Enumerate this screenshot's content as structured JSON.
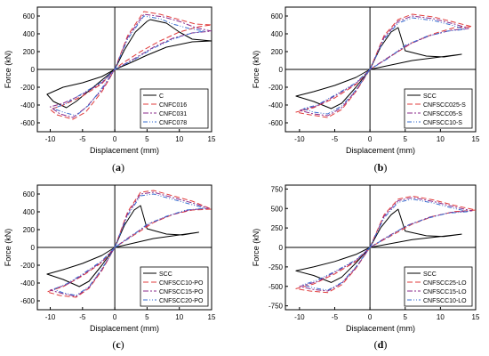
{
  "chart_data": [
    {
      "panel": "a",
      "type": "line",
      "xlabel": "Displacement (mm)",
      "ylabel": "Force (kN)",
      "xlim": [
        -12,
        15
      ],
      "ylim": [
        -700,
        700
      ],
      "xticks": [
        -10,
        -5,
        0,
        5,
        10,
        15
      ],
      "yticks": [
        -600,
        -400,
        -200,
        0,
        200,
        400,
        600
      ],
      "legend": "bottom-right",
      "series": [
        {
          "name": "C",
          "color": "#000000",
          "dash": "",
          "x": [
            0,
            1.5,
            3.2,
            5.0,
            5.5,
            8.0,
            10.0,
            12.0,
            15.0,
            12.0,
            8.0,
            5.0,
            2.0,
            0,
            -3.0,
            -6.0,
            -7.5,
            -9.5,
            -10.5,
            -8.0,
            -5.0,
            -2.0,
            0
          ],
          "y": [
            0,
            220,
            420,
            540,
            560,
            520,
            420,
            340,
            320,
            310,
            250,
            160,
            60,
            0,
            -180,
            -360,
            -430,
            -360,
            -280,
            -200,
            -150,
            -80,
            0
          ]
        },
        {
          "name": "CNFC016",
          "color": "#e03c3c",
          "dash": "6,3",
          "x": [
            0,
            2.0,
            4.5,
            7.0,
            10.0,
            12.5,
            15.0,
            13.0,
            10.0,
            7.0,
            4.0,
            1.0,
            0,
            -2.0,
            -4.5,
            -6.5,
            -9.0,
            -10.0,
            -8.0,
            -5.0,
            -2.0,
            0
          ],
          "y": [
            0,
            380,
            650,
            620,
            560,
            510,
            500,
            480,
            420,
            320,
            200,
            60,
            0,
            -250,
            -480,
            -560,
            -510,
            -450,
            -400,
            -300,
            -160,
            0
          ]
        },
        {
          "name": "CNFC031",
          "color": "#8a2a8a",
          "dash": "6,2,2,2",
          "x": [
            0,
            2.0,
            4.5,
            7.5,
            10.0,
            12.5,
            15.0,
            12.0,
            9.0,
            6.0,
            3.0,
            0,
            -2.0,
            -4.5,
            -6.5,
            -8.5,
            -10.0,
            -8.0,
            -5.0,
            -2.0,
            0
          ],
          "y": [
            0,
            360,
            620,
            590,
            540,
            470,
            430,
            410,
            350,
            250,
            120,
            0,
            -230,
            -430,
            -540,
            -500,
            -420,
            -380,
            -280,
            -150,
            0
          ]
        },
        {
          "name": "CNFC078",
          "color": "#3a6fd0",
          "dash": "5,2,1,2,1,2",
          "x": [
            0,
            2.0,
            4.5,
            7.0,
            9.0,
            11.5,
            14.0,
            12.0,
            9.0,
            6.0,
            3.0,
            0,
            -2.0,
            -4.0,
            -6.0,
            -8.0,
            -9.5,
            -7.5,
            -5.0,
            -2.0,
            0
          ],
          "y": [
            0,
            340,
            600,
            570,
            510,
            460,
            430,
            410,
            340,
            240,
            110,
            0,
            -210,
            -400,
            -520,
            -480,
            -440,
            -380,
            -270,
            -140,
            0
          ]
        }
      ]
    },
    {
      "panel": "b",
      "type": "line",
      "xlabel": "Displacement (mm)",
      "ylabel": "Force (kN)",
      "xlim": [
        -12,
        15
      ],
      "ylim": [
        -700,
        700
      ],
      "xticks": [
        -10,
        -5,
        0,
        5,
        10,
        15
      ],
      "yticks": [
        -600,
        -400,
        -200,
        0,
        200,
        400,
        600
      ],
      "legend": "bottom-right",
      "series": [
        {
          "name": "SCC",
          "color": "#000000",
          "dash": "",
          "x": [
            0,
            1.5,
            3.0,
            4.0,
            5.0,
            8.0,
            10.5,
            13.0,
            10.0,
            6.0,
            3.0,
            0,
            -2.0,
            -4.0,
            -5.5,
            -8.0,
            -10.5,
            -8.0,
            -5.0,
            -2.0,
            0
          ],
          "y": [
            0,
            250,
            420,
            470,
            210,
            150,
            140,
            170,
            140,
            100,
            50,
            0,
            -200,
            -380,
            -440,
            -360,
            -300,
            -250,
            -180,
            -90,
            0
          ]
        },
        {
          "name": "CNFSCC025-S",
          "color": "#e03c3c",
          "dash": "6,3",
          "x": [
            0,
            2.0,
            4.0,
            6.0,
            9.0,
            12.0,
            14.5,
            12.0,
            9.0,
            6.0,
            3.0,
            0,
            -2.0,
            -4.0,
            -6.0,
            -8.5,
            -10.5,
            -8.0,
            -5.0,
            -2.0,
            0
          ],
          "y": [
            0,
            380,
            560,
            620,
            590,
            530,
            480,
            470,
            400,
            300,
            150,
            0,
            -250,
            -450,
            -540,
            -510,
            -480,
            -430,
            -320,
            -170,
            0
          ]
        },
        {
          "name": "CNFSCC05-S",
          "color": "#8a2a8a",
          "dash": "6,2,2,2",
          "x": [
            0,
            2.0,
            4.0,
            6.0,
            9.0,
            12.0,
            14.0,
            11.5,
            8.5,
            5.5,
            2.5,
            0,
            -2.0,
            -4.0,
            -6.0,
            -8.0,
            -10.0,
            -7.5,
            -5.0,
            -2.0,
            0
          ],
          "y": [
            0,
            360,
            540,
            600,
            570,
            510,
            460,
            440,
            380,
            280,
            130,
            0,
            -240,
            -430,
            -520,
            -500,
            -460,
            -410,
            -300,
            -160,
            0
          ]
        },
        {
          "name": "CNFSCC10-S",
          "color": "#3a6fd0",
          "dash": "5,2,1,2,1,2",
          "x": [
            0,
            2.0,
            4.0,
            6.0,
            9.0,
            11.5,
            13.5,
            11.0,
            8.0,
            5.0,
            2.5,
            0,
            -2.0,
            -4.0,
            -6.0,
            -8.0,
            -9.5,
            -7.5,
            -5.0,
            -2.0,
            0
          ],
          "y": [
            0,
            340,
            520,
            580,
            550,
            500,
            450,
            430,
            370,
            270,
            120,
            0,
            -230,
            -410,
            -500,
            -480,
            -440,
            -400,
            -290,
            -150,
            0
          ]
        }
      ]
    },
    {
      "panel": "c",
      "type": "line",
      "xlabel": "Displacement (mm)",
      "ylabel": "Force (kN)",
      "xlim": [
        -12,
        15
      ],
      "ylim": [
        -700,
        700
      ],
      "xticks": [
        -10,
        -5,
        0,
        5,
        10,
        15
      ],
      "yticks": [
        -600,
        -400,
        -200,
        0,
        200,
        400,
        600
      ],
      "legend": "bottom-right",
      "series": [
        {
          "name": "SCC",
          "color": "#000000",
          "dash": "",
          "x": [
            0,
            1.5,
            3.0,
            4.0,
            5.0,
            8.0,
            10.5,
            13.0,
            10.0,
            6.0,
            3.0,
            0,
            -2.0,
            -4.0,
            -5.5,
            -8.0,
            -10.5,
            -8.0,
            -5.0,
            -2.0,
            0
          ],
          "y": [
            0,
            250,
            420,
            470,
            210,
            150,
            140,
            170,
            140,
            100,
            50,
            0,
            -200,
            -380,
            -440,
            -360,
            -300,
            -250,
            -180,
            -90,
            0
          ]
        },
        {
          "name": "CNFSCC10-PO",
          "color": "#e03c3c",
          "dash": "6,3",
          "x": [
            0,
            2.0,
            4.0,
            6.0,
            9.0,
            12.0,
            15.0,
            12.0,
            9.0,
            6.0,
            3.0,
            0,
            -2.0,
            -4.0,
            -6.0,
            -8.5,
            -10.5,
            -8.0,
            -5.0,
            -2.0,
            0
          ],
          "y": [
            0,
            400,
            620,
            640,
            580,
            520,
            430,
            420,
            370,
            280,
            140,
            0,
            -260,
            -460,
            -560,
            -540,
            -500,
            -440,
            -320,
            -170,
            0
          ]
        },
        {
          "name": "CNFSCC15-PO",
          "color": "#8a2a8a",
          "dash": "6,2,2,2",
          "x": [
            0,
            2.0,
            4.0,
            6.0,
            9.0,
            12.0,
            14.5,
            11.5,
            8.5,
            5.5,
            2.5,
            0,
            -2.0,
            -4.0,
            -6.0,
            -8.0,
            -10.0,
            -7.5,
            -5.0,
            -2.0,
            0
          ],
          "y": [
            0,
            380,
            600,
            620,
            560,
            500,
            440,
            420,
            360,
            270,
            130,
            0,
            -250,
            -450,
            -550,
            -520,
            -480,
            -420,
            -310,
            -160,
            0
          ]
        },
        {
          "name": "CNFSCC20-PO",
          "color": "#3a6fd0",
          "dash": "5,2,1,2,1,2",
          "x": [
            0,
            2.0,
            4.0,
            6.0,
            9.0,
            11.5,
            14.0,
            11.0,
            8.0,
            5.0,
            2.5,
            0,
            -2.0,
            -4.0,
            -6.0,
            -8.0,
            -9.5,
            -7.5,
            -5.0,
            -2.0,
            0
          ],
          "y": [
            0,
            360,
            580,
            600,
            540,
            490,
            440,
            420,
            350,
            260,
            120,
            0,
            -240,
            -440,
            -540,
            -510,
            -470,
            -410,
            -300,
            -150,
            0
          ]
        }
      ]
    },
    {
      "panel": "d",
      "type": "line",
      "xlabel": "Displacement (mm)",
      "ylabel": "Force (kN)",
      "xlim": [
        -12,
        15
      ],
      "ylim": [
        -800,
        800
      ],
      "xticks": [
        -10,
        -5,
        0,
        5,
        10,
        15
      ],
      "yticks": [
        -750,
        -500,
        -250,
        0,
        250,
        500,
        750
      ],
      "legend": "bottom-right",
      "series": [
        {
          "name": "SCC",
          "color": "#000000",
          "dash": "",
          "x": [
            0,
            1.5,
            3.0,
            4.0,
            5.0,
            8.0,
            10.5,
            13.0,
            10.0,
            6.0,
            3.0,
            0,
            -2.0,
            -4.0,
            -5.5,
            -8.0,
            -10.5,
            -8.0,
            -5.0,
            -2.0,
            0
          ],
          "y": [
            0,
            250,
            420,
            490,
            210,
            150,
            140,
            170,
            140,
            100,
            50,
            0,
            -200,
            -380,
            -450,
            -360,
            -300,
            -250,
            -180,
            -90,
            0
          ]
        },
        {
          "name": "CNFSCC25-LO",
          "color": "#e03c3c",
          "dash": "6,3",
          "x": [
            0,
            2.0,
            4.0,
            6.0,
            9.0,
            12.0,
            15.0,
            12.0,
            9.0,
            6.0,
            3.0,
            0,
            -2.0,
            -4.0,
            -6.0,
            -8.5,
            -10.5,
            -8.0,
            -5.0,
            -2.0,
            0
          ],
          "y": [
            0,
            420,
            620,
            660,
            610,
            540,
            480,
            460,
            400,
            300,
            150,
            0,
            -270,
            -480,
            -580,
            -560,
            -530,
            -470,
            -340,
            -180,
            0
          ]
        },
        {
          "name": "CNFSCC15-LO",
          "color": "#8a2a8a",
          "dash": "6,2,2,2",
          "x": [
            0,
            2.0,
            4.0,
            6.0,
            9.0,
            12.0,
            14.5,
            11.5,
            8.5,
            5.5,
            2.5,
            0,
            -2.0,
            -4.0,
            -6.0,
            -8.0,
            -10.0,
            -7.5,
            -5.0,
            -2.0,
            0
          ],
          "y": [
            0,
            400,
            600,
            640,
            590,
            520,
            470,
            450,
            390,
            290,
            140,
            0,
            -260,
            -460,
            -560,
            -540,
            -500,
            -440,
            -320,
            -170,
            0
          ]
        },
        {
          "name": "CNFSCC10-LO",
          "color": "#3a6fd0",
          "dash": "5,2,1,2,1,2",
          "x": [
            0,
            2.0,
            4.0,
            6.0,
            9.0,
            11.5,
            14.0,
            11.0,
            8.0,
            5.0,
            2.5,
            0,
            -2.0,
            -4.0,
            -6.0,
            -8.0,
            -9.5,
            -7.5,
            -5.0,
            -2.0,
            0
          ],
          "y": [
            0,
            380,
            580,
            620,
            570,
            510,
            460,
            440,
            370,
            270,
            130,
            0,
            -250,
            -450,
            -550,
            -520,
            -480,
            -420,
            -310,
            -160,
            0
          ]
        }
      ]
    }
  ],
  "captions": [
    "(a)",
    "(b)",
    "(c)",
    "(d)"
  ]
}
